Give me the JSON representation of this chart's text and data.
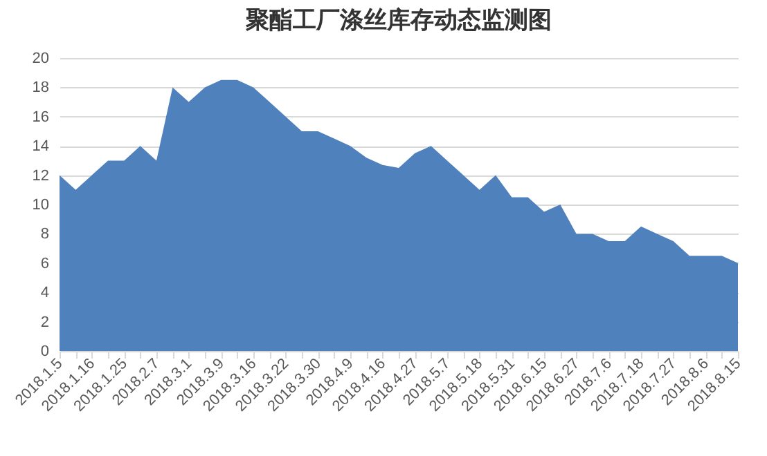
{
  "chart_data": {
    "type": "area",
    "title": "聚酯工厂涤丝库存动态监测图",
    "categories": [
      "2018.1.5",
      null,
      "2018.1.16",
      null,
      "2018.1.25",
      null,
      "2018.2.7",
      null,
      "2018.3.1",
      null,
      "2018.3.9",
      null,
      "2018.3.16",
      null,
      "2018.3.22",
      null,
      "2018.3.30",
      null,
      "2018.4.9",
      null,
      "2018.4.16",
      null,
      "2018.4.27",
      null,
      "2018.5.7",
      null,
      "2018.5.18",
      null,
      "2018.5.31",
      null,
      "2018.6.15",
      null,
      "2018.6.27",
      null,
      "2018.7.6",
      null,
      "2018.7.18",
      null,
      "2018.7.27",
      null,
      "2018.8.6",
      null,
      "2018.8.15"
    ],
    "values": [
      12,
      11,
      12,
      13,
      13,
      14,
      13,
      18,
      17,
      18,
      18.5,
      18.5,
      18,
      17,
      16,
      15,
      15,
      14.5,
      14,
      13.2,
      12.7,
      12.5,
      13.5,
      14,
      13,
      12,
      11,
      12,
      10.5,
      10.5,
      9.5,
      10,
      8,
      8,
      7.5,
      7.5,
      8.5,
      8,
      7.5,
      6.5,
      6.5,
      6.5,
      6
    ],
    "color": "#4f81bd",
    "ylim": [
      0,
      20
    ],
    "yticks": [
      0,
      2,
      4,
      6,
      8,
      10,
      12,
      14,
      16,
      18,
      20
    ],
    "grid": "y"
  }
}
